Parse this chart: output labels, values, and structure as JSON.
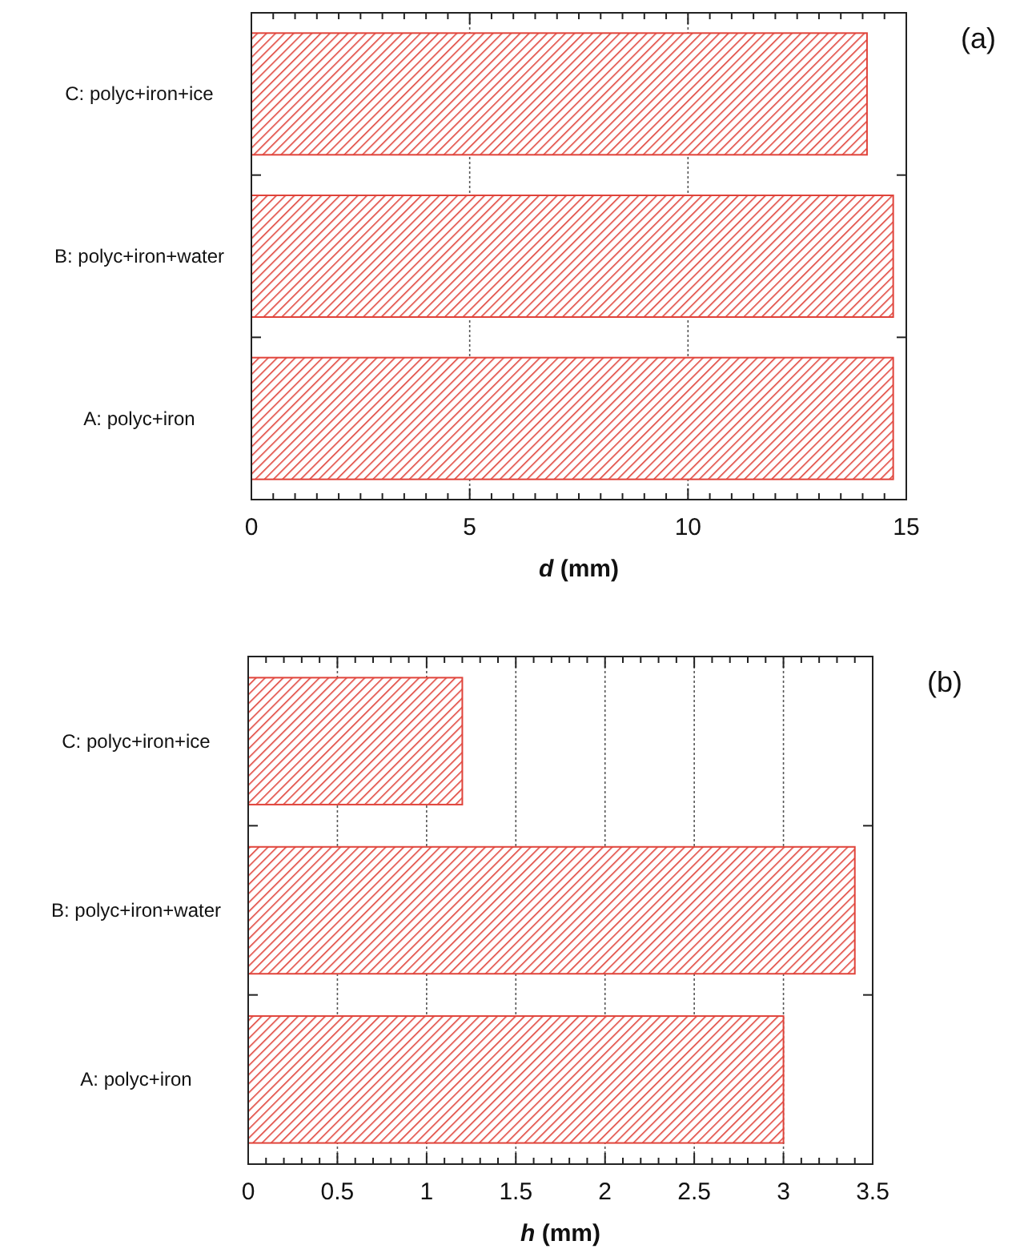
{
  "chart_data": [
    {
      "type": "bar",
      "orientation": "horizontal",
      "annotations": [
        "(a)"
      ],
      "xlabel": "d (mm)",
      "categories": [
        "C: polyc+iron+ice",
        "B: polyc+iron+water",
        "A: polyc+iron"
      ],
      "values": [
        14.1,
        14.7,
        14.7
      ],
      "color": "#e0433a",
      "xlim": [
        0,
        15
      ],
      "xticks": [
        0,
        {
          "value": 0.5,
          "label": null
        },
        {
          "value": 1,
          "label": null
        },
        {
          "value": 1.5,
          "label": null
        },
        {
          "value": 2,
          "label": null
        },
        {
          "value": 2.5,
          "label": null
        },
        {
          "value": 3,
          "label": null
        },
        {
          "value": 3.5,
          "label": null
        },
        {
          "value": 4,
          "label": null
        },
        {
          "value": 4.5,
          "label": null
        },
        5,
        {
          "value": 5.5,
          "label": null
        },
        {
          "value": 6,
          "label": null
        },
        {
          "value": 6.5,
          "label": null
        },
        {
          "value": 7,
          "label": null
        },
        {
          "value": 7.5,
          "label": null
        },
        {
          "value": 8,
          "label": null
        },
        {
          "value": 8.5,
          "label": null
        },
        {
          "value": 9,
          "label": null
        },
        {
          "value": 9.5,
          "label": null
        },
        10,
        {
          "value": 10.5,
          "label": null
        },
        {
          "value": 11,
          "label": null
        },
        {
          "value": 11.5,
          "label": null
        },
        {
          "value": 12,
          "label": null
        },
        {
          "value": 12.5,
          "label": null
        },
        {
          "value": 13,
          "label": null
        },
        {
          "value": 13.5,
          "label": null
        },
        {
          "value": 14,
          "label": null
        },
        {
          "value": 14.5,
          "label": null
        },
        15
      ],
      "grid": "x"
    },
    {
      "type": "bar",
      "orientation": "horizontal",
      "annotations": [
        "(b)"
      ],
      "xlabel": "h (mm)",
      "categories": [
        "C: polyc+iron+ice",
        "B: polyc+iron+water",
        "A: polyc+iron"
      ],
      "values": [
        1.2,
        3.4,
        3.0
      ],
      "color": "#e0433a",
      "xlim": [
        0,
        3.5
      ],
      "xticks": [
        0,
        {
          "value": 0.1,
          "label": null
        },
        {
          "value": 0.2,
          "label": null
        },
        {
          "value": 0.3,
          "label": null
        },
        {
          "value": 0.4,
          "label": null
        },
        0.5,
        {
          "value": 0.6,
          "label": null
        },
        {
          "value": 0.7,
          "label": null
        },
        {
          "value": 0.8,
          "label": null
        },
        {
          "value": 0.9,
          "label": null
        },
        1,
        {
          "value": 1.1,
          "label": null
        },
        {
          "value": 1.2,
          "label": null
        },
        {
          "value": 1.3,
          "label": null
        },
        {
          "value": 1.4,
          "label": null
        },
        1.5,
        {
          "value": 1.6,
          "label": null
        },
        {
          "value": 1.7,
          "label": null
        },
        {
          "value": 1.8,
          "label": null
        },
        {
          "value": 1.9,
          "label": null
        },
        2,
        {
          "value": 2.1,
          "label": null
        },
        {
          "value": 2.2,
          "label": null
        },
        {
          "value": 2.3,
          "label": null
        },
        {
          "value": 2.4,
          "label": null
        },
        2.5,
        {
          "value": 2.6,
          "label": null
        },
        {
          "value": 2.7,
          "label": null
        },
        {
          "value": 2.8,
          "label": null
        },
        {
          "value": 2.9,
          "label": null
        },
        3,
        {
          "value": 3.1,
          "label": null
        },
        {
          "value": 3.2,
          "label": null
        },
        {
          "value": 3.3,
          "label": null
        },
        {
          "value": 3.4,
          "label": null
        },
        3.5
      ],
      "grid": "x"
    }
  ]
}
